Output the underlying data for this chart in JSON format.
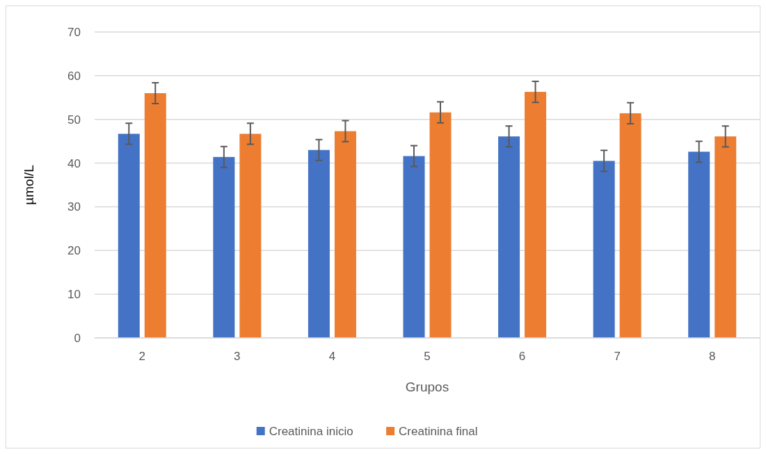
{
  "chart_data": {
    "type": "bar",
    "xlabel": "Grupos",
    "ylabel": "µmol/L",
    "categories": [
      "2",
      "3",
      "4",
      "5",
      "6",
      "7",
      "8"
    ],
    "series": [
      {
        "name": "Creatinina inicio",
        "color": "#4472c4",
        "values": [
          46.7,
          41.4,
          43.0,
          41.6,
          46.1,
          40.5,
          42.6
        ],
        "errors": [
          2.4,
          2.4,
          2.4,
          2.4,
          2.4,
          2.4,
          2.4
        ]
      },
      {
        "name": "Creatinina final",
        "color": "#ed7d31",
        "values": [
          56.0,
          46.7,
          47.3,
          51.6,
          56.3,
          51.4,
          46.1
        ],
        "errors": [
          2.4,
          2.4,
          2.4,
          2.4,
          2.4,
          2.4,
          2.4
        ]
      }
    ],
    "ylim": [
      0,
      70
    ],
    "yticks": [
      0,
      10,
      20,
      30,
      40,
      50,
      60,
      70
    ],
    "grid": "y",
    "legend": "bottom"
  }
}
